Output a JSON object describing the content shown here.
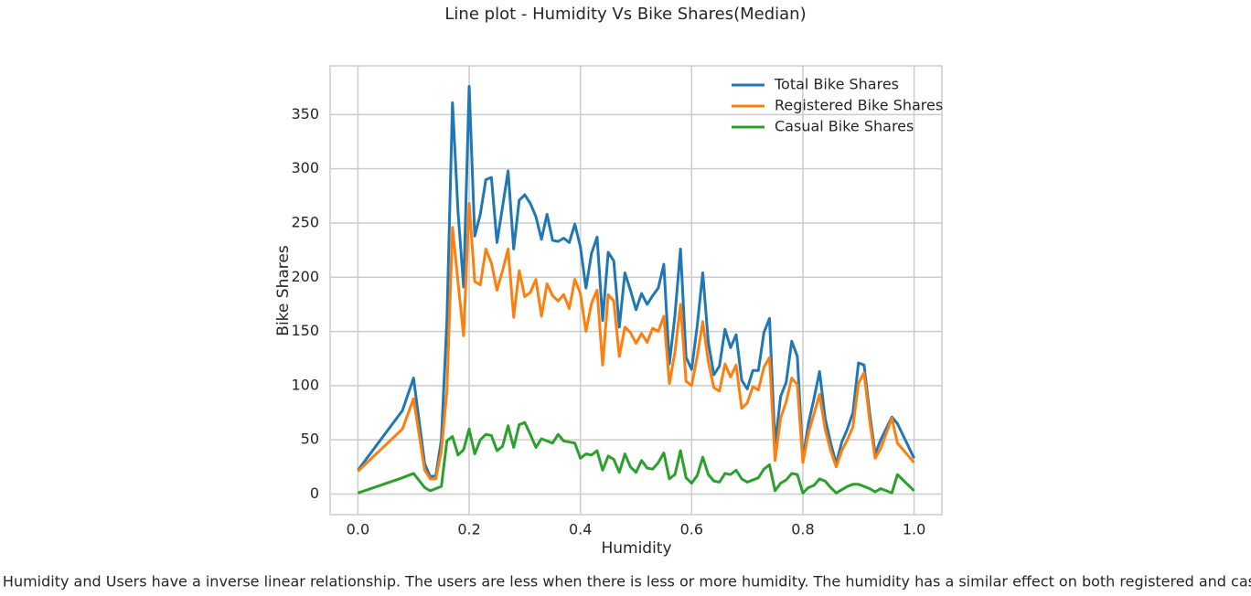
{
  "chart_data": {
    "type": "line",
    "title": "Line plot - Humidity Vs Bike Shares(Median)",
    "x_label": "Humidity",
    "y_label": "Bike Shares",
    "note": "Inference: Humidity and Users have a inverse linear relationship. The users are less when there is less or more humidity. The humidity has a similar effect on both registered and casual users.",
    "x": [
      0,
      0.08,
      0.1,
      0.12,
      0.13,
      0.14,
      0.15,
      0.16,
      0.17,
      0.18,
      0.19,
      0.2,
      0.21,
      0.22,
      0.23,
      0.24,
      0.25,
      0.26,
      0.27,
      0.28,
      0.29,
      0.3,
      0.31,
      0.32,
      0.33,
      0.34,
      0.35,
      0.36,
      0.37,
      0.38,
      0.39,
      0.4,
      0.41,
      0.42,
      0.43,
      0.44,
      0.45,
      0.46,
      0.47,
      0.48,
      0.49,
      0.5,
      0.51,
      0.52,
      0.53,
      0.54,
      0.55,
      0.56,
      0.57,
      0.58,
      0.59,
      0.6,
      0.61,
      0.62,
      0.63,
      0.64,
      0.65,
      0.66,
      0.67,
      0.68,
      0.69,
      0.7,
      0.71,
      0.72,
      0.73,
      0.74,
      0.75,
      0.76,
      0.77,
      0.78,
      0.79,
      0.8,
      0.81,
      0.82,
      0.83,
      0.84,
      0.85,
      0.86,
      0.87,
      0.88,
      0.89,
      0.9,
      0.91,
      0.92,
      0.93,
      0.94,
      0.96,
      0.97,
      1.0
    ],
    "series": [
      {
        "name": "Total Bike Shares",
        "color": "#1f77b4",
        "values": [
          22,
          77,
          107,
          28,
          16,
          17,
          50,
          160,
          361,
          260,
          191,
          376,
          238,
          258,
          290,
          292,
          232,
          265,
          298,
          226,
          271,
          276,
          268,
          256,
          235,
          258,
          234,
          233,
          236,
          232,
          249,
          228,
          190,
          222,
          237,
          160,
          223,
          215,
          154,
          204,
          188,
          170,
          185,
          175,
          183,
          190,
          212,
          120,
          165,
          226,
          126,
          115,
          155,
          204,
          140,
          110,
          118,
          152,
          135,
          147,
          105,
          97,
          114,
          114,
          149,
          162,
          45,
          90,
          103,
          141,
          127,
          32,
          65,
          88,
          113,
          70,
          47,
          28,
          48,
          60,
          75,
          121,
          119,
          75,
          37,
          50,
          71,
          65,
          33
        ]
      },
      {
        "name": "Registered Bike Shares",
        "color": "#ff7f0e",
        "values": [
          21,
          60,
          88,
          22,
          14,
          14,
          40,
          95,
          246,
          195,
          146,
          268,
          196,
          193,
          226,
          213,
          188,
          206,
          226,
          163,
          206,
          182,
          186,
          198,
          164,
          194,
          183,
          178,
          184,
          171,
          198,
          185,
          150,
          176,
          188,
          119,
          184,
          178,
          127,
          154,
          149,
          139,
          148,
          140,
          153,
          150,
          164,
          102,
          131,
          175,
          104,
          100,
          127,
          159,
          122,
          98,
          95,
          120,
          108,
          119,
          79,
          84,
          99,
          96,
          117,
          126,
          31,
          70,
          85,
          107,
          101,
          29,
          56,
          74,
          92,
          60,
          40,
          25,
          40,
          50,
          62,
          102,
          112,
          68,
          33,
          42,
          70,
          47,
          29
        ]
      },
      {
        "name": "Casual Bike Shares",
        "color": "#2ca02c",
        "values": [
          1,
          15,
          19,
          6,
          3,
          5,
          7,
          49,
          53,
          36,
          41,
          60,
          37,
          50,
          55,
          54,
          40,
          44,
          63,
          43,
          64,
          66,
          55,
          43,
          51,
          49,
          47,
          55,
          49,
          48,
          47,
          33,
          37,
          36,
          40,
          22,
          35,
          32,
          20,
          37,
          25,
          20,
          31,
          24,
          23,
          29,
          38,
          14,
          18,
          40,
          15,
          10,
          17,
          34,
          18,
          12,
          11,
          19,
          18,
          22,
          14,
          11,
          13,
          15,
          23,
          27,
          3,
          10,
          13,
          19,
          18,
          1,
          6,
          8,
          14,
          12,
          6,
          1,
          4,
          7,
          9,
          9,
          7,
          5,
          2,
          5,
          1,
          18,
          3
        ]
      }
    ],
    "xlim": [
      -0.05,
      1.05
    ],
    "ylim": [
      -19,
      395
    ],
    "xticks": [
      {
        "value": 0,
        "label": "0.0"
      },
      0.2,
      0.4,
      0.6,
      0.8,
      {
        "value": 1,
        "label": "1.0"
      }
    ],
    "yticks": [
      0,
      50,
      100,
      150,
      200,
      250,
      300,
      350
    ],
    "grid": true,
    "legend": "upper right"
  }
}
